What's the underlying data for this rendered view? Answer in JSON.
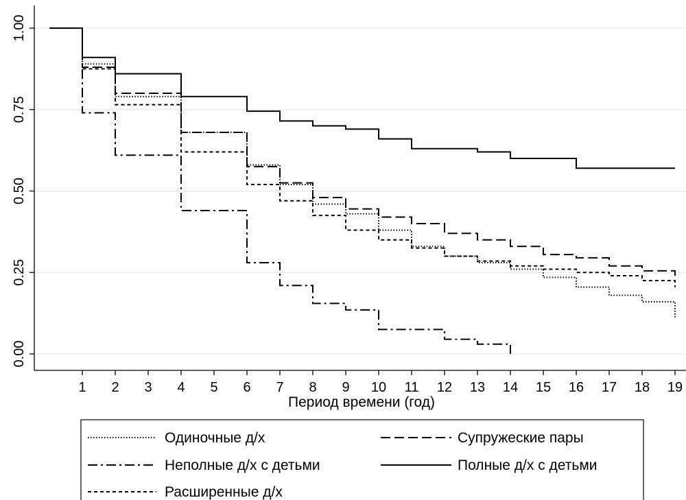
{
  "chart_data": {
    "type": "line",
    "step": true,
    "xlabel": "Период времени (год)",
    "ylabel": "",
    "xticks": [
      1,
      2,
      3,
      4,
      5,
      6,
      7,
      8,
      9,
      10,
      11,
      12,
      13,
      14,
      15,
      16,
      17,
      18,
      19
    ],
    "yticks": [
      "0.00",
      "0.25",
      "0.50",
      "0.75",
      "1.00"
    ],
    "xlim": [
      0,
      19
    ],
    "ylim": [
      0,
      1
    ],
    "grid": true,
    "legend_position": "bottom",
    "series": [
      {
        "name": "Одиночные д/х",
        "dash": "dotted",
        "x": [
          0,
          1,
          2,
          4,
          6,
          7,
          8,
          9,
          10,
          11,
          12,
          13,
          14,
          15,
          16,
          17,
          18,
          19
        ],
        "y": [
          1.0,
          0.89,
          0.79,
          0.68,
          0.58,
          0.52,
          0.46,
          0.43,
          0.38,
          0.33,
          0.3,
          0.28,
          0.26,
          0.235,
          0.205,
          0.18,
          0.16,
          0.11
        ]
      },
      {
        "name": "Супружеские пары",
        "dash": "long-dash",
        "x": [
          0,
          1,
          2,
          4,
          6,
          7,
          8,
          9,
          10,
          11,
          12,
          13,
          14,
          15,
          16,
          17,
          18,
          19
        ],
        "y": [
          1.0,
          0.88,
          0.8,
          0.68,
          0.575,
          0.525,
          0.48,
          0.445,
          0.42,
          0.4,
          0.37,
          0.35,
          0.33,
          0.305,
          0.295,
          0.27,
          0.255,
          0.24
        ]
      },
      {
        "name": "Неполные д/х с детьми",
        "dash": "dash-dot",
        "x": [
          0,
          1,
          2,
          4,
          6,
          7,
          8,
          9,
          10,
          12,
          13,
          14
        ],
        "y": [
          1.0,
          0.74,
          0.61,
          0.44,
          0.28,
          0.21,
          0.155,
          0.135,
          0.075,
          0.045,
          0.03,
          0.0
        ]
      },
      {
        "name": "Полные д/х с детьми",
        "dash": "solid",
        "x": [
          0,
          1,
          2,
          4,
          6,
          7,
          8,
          9,
          10,
          11,
          13,
          14,
          16,
          19
        ],
        "y": [
          1.0,
          0.91,
          0.86,
          0.79,
          0.745,
          0.715,
          0.7,
          0.69,
          0.66,
          0.63,
          0.62,
          0.6,
          0.57,
          0.57
        ]
      },
      {
        "name": "Расширенные д/х",
        "dash": "short-dash",
        "x": [
          0,
          1,
          2,
          4,
          6,
          7,
          8,
          9,
          10,
          11,
          12,
          13,
          14,
          15,
          16,
          17,
          18,
          19
        ],
        "y": [
          1.0,
          0.875,
          0.765,
          0.62,
          0.52,
          0.47,
          0.425,
          0.38,
          0.35,
          0.325,
          0.3,
          0.285,
          0.27,
          0.26,
          0.25,
          0.24,
          0.225,
          0.205
        ]
      }
    ]
  }
}
